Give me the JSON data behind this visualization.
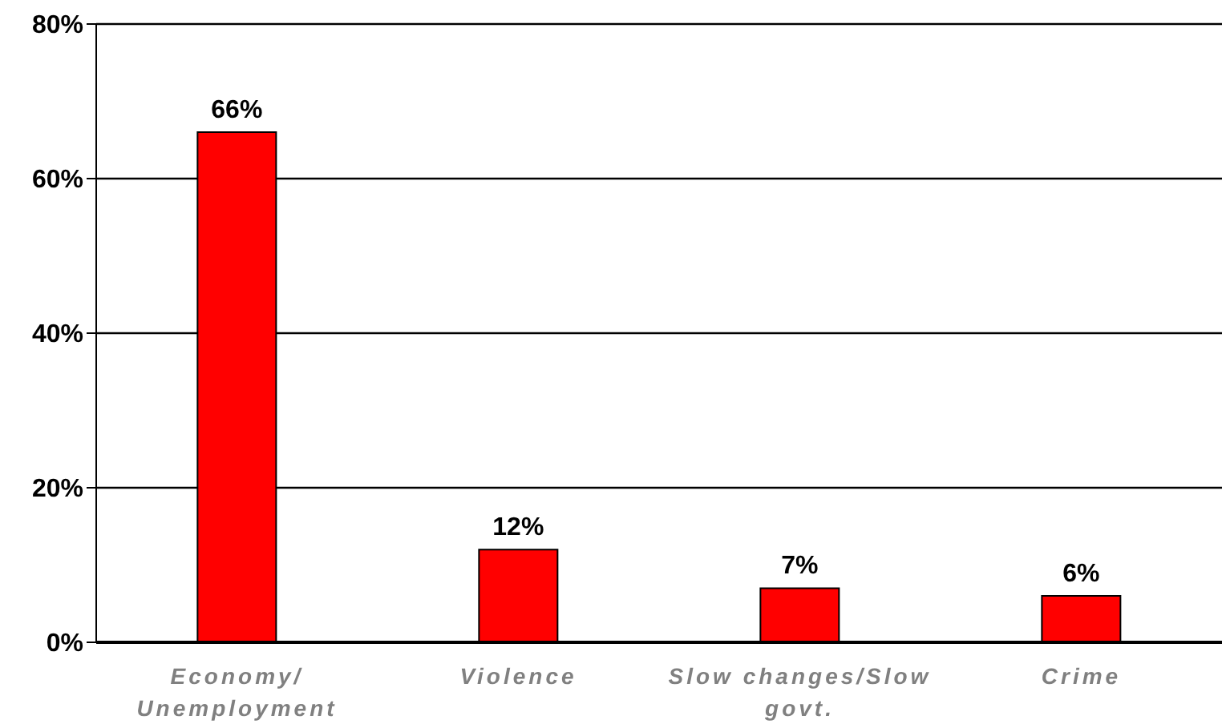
{
  "chart_data": {
    "type": "bar",
    "categories": [
      "Economy/ Unemployment",
      "Violence",
      "Slow changes/Slow govt.",
      "Crime"
    ],
    "values": [
      66,
      12,
      7,
      6
    ],
    "color": "#ff0000",
    "value_labels": [
      "66%",
      "12%",
      "7%",
      "6%"
    ],
    "ylim": [
      0,
      80
    ],
    "yticks": [
      {
        "value": 0,
        "label": "0%"
      },
      {
        "value": 20,
        "label": "20%"
      },
      {
        "value": 40,
        "label": "40%"
      },
      {
        "value": 60,
        "label": "60%"
      },
      {
        "value": 80,
        "label": "80%"
      }
    ],
    "grid": "y"
  }
}
